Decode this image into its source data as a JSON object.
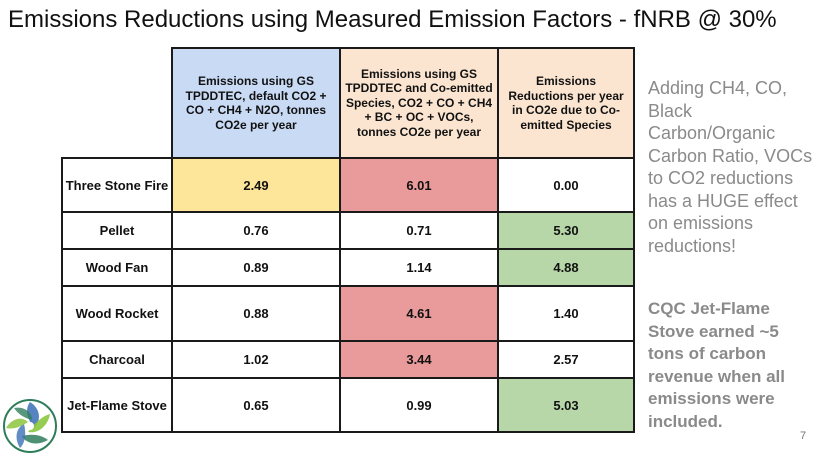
{
  "slide": {
    "title": "Emissions Reductions using Measured Emission Factors - fNRB @ 30%",
    "page_number": "7"
  },
  "table": {
    "headers": [
      "Emissions using GS TPDDTEC, default CO2 + CO + CH4 + N2O, tonnes CO2e per year",
      "Emissions using GS TPDDTEC and Co-emitted Species, CO2 + CO + CH4  + BC + OC + VOCs, tonnes CO2e per year",
      "Emissions Reductions per year in CO2e due to Co-emitted Species"
    ],
    "rows": [
      {
        "label": "Three Stone Fire",
        "values": [
          "2.49",
          "6.01",
          "0.00"
        ],
        "colors": [
          "#fde699",
          "#e99a9a",
          "#ffffff"
        ]
      },
      {
        "label": "Pellet",
        "values": [
          "0.76",
          "0.71",
          "5.30"
        ],
        "colors": [
          "#ffffff",
          "#ffffff",
          "#b7d7a8"
        ]
      },
      {
        "label": "Wood Fan",
        "values": [
          "0.89",
          "1.14",
          "4.88"
        ],
        "colors": [
          "#ffffff",
          "#ffffff",
          "#b7d7a8"
        ]
      },
      {
        "label": "Wood Rocket",
        "values": [
          "0.88",
          "4.61",
          "1.40"
        ],
        "colors": [
          "#ffffff",
          "#e99a9a",
          "#ffffff"
        ]
      },
      {
        "label": "Charcoal",
        "values": [
          "1.02",
          "3.44",
          "2.57"
        ],
        "colors": [
          "#ffffff",
          "#e99a9a",
          "#ffffff"
        ]
      },
      {
        "label": "Jet-Flame Stove",
        "values": [
          "0.65",
          "0.99",
          "5.03"
        ],
        "colors": [
          "#ffffff",
          "#ffffff",
          "#b7d7a8"
        ]
      }
    ]
  },
  "sidebar": {
    "note": "Adding CH4, CO, Black Carbon/Organic Carbon Ratio, VOCs to CO2 reductions has a HUGE effect on emissions reductions!",
    "highlight": "CQC Jet-Flame Stove earned ~5 tons of carbon revenue when all emissions were included."
  },
  "logo": {
    "icon": "circular-leaf-logo-icon",
    "colors": [
      "#2e7d5b",
      "#3a6fb5",
      "#8cc63f"
    ]
  }
}
